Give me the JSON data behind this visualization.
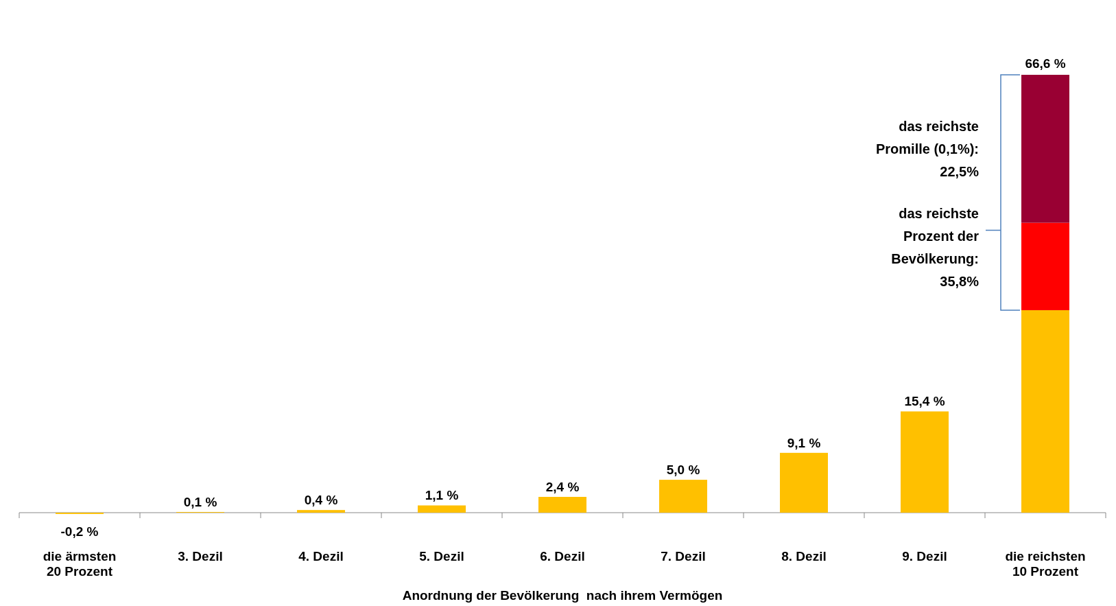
{
  "chart_data": {
    "type": "bar",
    "stacked": true,
    "xlabel": "Anordnung der Bevölkerung  nach ihrem Vermögen",
    "categories": [
      "die ärmsten 20 Prozent",
      "3. Dezil",
      "4. Dezil",
      "5. Dezil",
      "6. Dezil",
      "7. Dezil",
      "8. Dezil",
      "9. Dezil",
      "die reichsten 10 Prozent"
    ],
    "series": [
      {
        "color": "#ffc000",
        "values": [
          -0.2,
          0.1,
          0.4,
          1.1,
          2.4,
          5.0,
          9.1,
          15.4,
          30.8
        ],
        "value_labels": [
          "-0,2 %",
          "0,1 %",
          "0,4 %",
          "1,1 %",
          "2,4 %",
          "5,0 %",
          "9,1 %",
          "15,4 %",
          null
        ]
      },
      {
        "color": "#ff0000",
        "values": [
          null,
          null,
          null,
          null,
          null,
          null,
          null,
          null,
          13.3
        ]
      },
      {
        "color": "#990033",
        "values": [
          null,
          null,
          null,
          null,
          null,
          null,
          null,
          null,
          22.5
        ]
      }
    ],
    "totals": [
      null,
      null,
      null,
      null,
      null,
      null,
      null,
      null,
      "66,6 %"
    ],
    "annotations": [
      "das reichste Promille (0,1%): 22,5%",
      "das reichste Prozent der Bevölkerung: 35,8%"
    ]
  }
}
